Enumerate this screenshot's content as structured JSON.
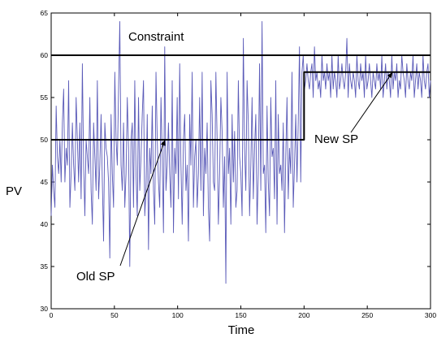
{
  "chart_data": {
    "type": "line",
    "title": "",
    "xlabel": "Time",
    "ylabel": "PV",
    "xlim": [
      0,
      300
    ],
    "ylim": [
      30,
      65
    ],
    "x_ticks": [
      0,
      50,
      100,
      150,
      200,
      250,
      300
    ],
    "y_ticks": [
      30,
      35,
      40,
      45,
      50,
      55,
      60,
      65
    ],
    "grid": false,
    "legend": "none",
    "colors": {
      "pv": "#5a5ab8",
      "reference": "#000000"
    },
    "series": [
      {
        "id": "pv",
        "values": [
          41,
          47,
          44,
          42,
          54,
          48,
          46,
          50,
          45,
          52,
          56,
          45,
          49,
          47,
          57,
          42,
          46,
          52,
          47,
          44,
          55,
          50,
          45,
          52,
          43,
          59,
          47,
          41,
          50,
          48,
          46,
          55,
          44,
          40,
          52,
          48,
          44,
          57,
          43,
          47,
          53,
          45,
          38,
          52,
          49,
          48,
          45,
          36,
          53,
          46,
          42,
          58,
          50,
          47,
          56,
          64,
          47,
          44,
          52,
          42,
          46,
          55,
          49,
          35,
          50,
          52,
          42,
          57,
          46,
          41,
          55,
          44,
          48,
          53,
          57,
          41,
          44,
          53,
          37,
          49,
          46,
          54,
          44,
          40,
          58,
          50,
          45,
          42,
          55,
          48,
          39,
          61,
          44,
          47,
          52,
          46,
          42,
          57,
          39,
          49,
          46,
          55,
          43,
          59,
          47,
          40,
          50,
          53,
          44,
          47,
          38,
          53,
          47,
          58,
          42,
          48,
          50,
          42,
          46,
          55,
          44,
          58,
          41,
          49,
          46,
          52,
          42,
          38,
          57,
          53,
          45,
          44,
          58,
          50,
          40,
          46,
          55,
          51,
          42,
          48,
          33,
          58,
          46,
          49,
          40,
          53,
          45,
          51,
          42,
          44,
          57,
          48,
          46,
          41,
          62,
          49,
          44,
          57,
          52,
          41,
          47,
          55,
          43,
          49,
          53,
          40,
          46,
          59,
          44,
          64,
          46,
          47,
          39,
          54,
          45,
          41,
          55,
          48,
          49,
          43,
          57,
          40,
          53,
          46,
          47,
          44,
          52,
          39,
          48,
          55,
          43,
          49,
          46,
          58,
          42,
          47,
          53,
          45,
          52,
          61,
          45,
          58,
          60,
          56,
          57,
          59,
          57,
          56,
          58,
          59,
          55,
          61,
          57,
          58,
          56,
          57,
          55,
          60,
          57,
          58,
          56,
          59,
          57,
          58,
          55,
          60,
          56,
          58,
          57,
          55,
          60,
          56,
          57,
          59,
          57,
          56,
          58,
          62,
          55,
          59,
          57,
          56,
          58,
          57,
          55,
          60,
          57,
          56,
          59,
          57,
          58,
          55,
          60,
          56,
          57,
          59,
          57,
          55,
          58,
          57,
          56,
          59,
          57,
          58,
          56,
          60,
          55,
          57,
          59,
          56,
          58,
          57,
          55,
          60,
          56,
          58,
          57,
          59,
          55,
          57,
          56,
          60,
          58,
          57,
          55,
          59,
          57,
          56,
          58,
          57,
          60,
          55,
          57,
          59,
          56,
          58,
          57,
          55,
          60,
          57,
          56,
          58,
          59,
          55,
          57
        ]
      },
      {
        "id": "constraint",
        "x": [
          0,
          300
        ],
        "y": [
          60,
          60
        ]
      },
      {
        "id": "setpoint",
        "x": [
          0,
          200,
          200,
          300
        ],
        "y": [
          50,
          50,
          58,
          58
        ]
      }
    ],
    "annotations": [
      {
        "id": "constraint",
        "text": "Constraint"
      },
      {
        "id": "new-sp",
        "text": "New SP",
        "points_to": [
          270,
          58
        ]
      },
      {
        "id": "old-sp",
        "text": "Old SP",
        "points_to": [
          90,
          50
        ]
      }
    ]
  }
}
